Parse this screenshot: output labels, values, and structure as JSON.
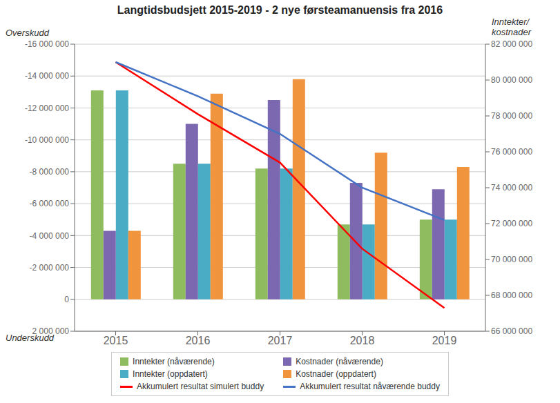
{
  "chart_data": {
    "type": "bar",
    "title": "Langtidsbudsjett 2015-2019 - 2 nye førsteamanuensis fra 2016",
    "annotations": [
      "Overskudd",
      "Underskudd",
      "Inntekter/\nkostnader"
    ],
    "categories": [
      "2015",
      "2016",
      "2017",
      "2018",
      "2019"
    ],
    "series": [
      {
        "name": "Inntekter (nåværende)",
        "color": "#8fbc5f",
        "values": [
          -13100000,
          -8500000,
          -8200000,
          -4700000,
          -5000000
        ]
      },
      {
        "name": "Kostnader (nåværende)",
        "color": "#7b68b0",
        "values": [
          -4300000,
          -11000000,
          -12500000,
          -7300000,
          -6900000
        ]
      },
      {
        "name": "Inntekter (oppdatert)",
        "color": "#4bacc6",
        "values": [
          -13100000,
          -8500000,
          -8200000,
          -4700000,
          -5000000
        ]
      },
      {
        "name": "Kostnader (oppdatert)",
        "color": "#f0943d",
        "values": [
          -4300000,
          -12900000,
          -13800000,
          -9200000,
          -8300000
        ]
      },
      {
        "name": "Akkumulert resultat simulert buddy",
        "type": "line",
        "axis": "y2",
        "color": "#ff0000",
        "values": [
          81000000,
          78100000,
          75400000,
          70600000,
          67300000
        ]
      },
      {
        "name": "Akkumulert resultat nåværende buddy",
        "type": "line",
        "axis": "y2",
        "color": "#4472c4",
        "values": [
          81000000,
          79100000,
          77000000,
          74000000,
          72200000
        ]
      }
    ],
    "ylim": [
      2000000,
      -16000000
    ],
    "yticks": [
      {
        "value": -16000000,
        "label": "-16 000 000"
      },
      {
        "value": -14000000,
        "label": "-14 000 000"
      },
      {
        "value": -12000000,
        "label": "-12 000 000"
      },
      {
        "value": -10000000,
        "label": "-10 000 000"
      },
      {
        "value": -8000000,
        "label": "-8 000 000"
      },
      {
        "value": -6000000,
        "label": "-6 000 000"
      },
      {
        "value": -4000000,
        "label": "-4 000 000"
      },
      {
        "value": -2000000,
        "label": "-2 000 000"
      },
      0,
      {
        "value": 2000000,
        "label": "2 000 000"
      }
    ],
    "y2lim": [
      66000000,
      82000000
    ],
    "y2ticks": [
      {
        "value": 66000000,
        "label": "66 000 000"
      },
      {
        "value": 68000000,
        "label": "68 000 000"
      },
      {
        "value": 70000000,
        "label": "70 000 000"
      },
      {
        "value": 72000000,
        "label": "72 000 000"
      },
      {
        "value": 74000000,
        "label": "74 000 000"
      },
      {
        "value": 76000000,
        "label": "76 000 000"
      },
      {
        "value": 78000000,
        "label": "78 000 000"
      },
      {
        "value": 80000000,
        "label": "80 000 000"
      },
      {
        "value": 82000000,
        "label": "82 000 000"
      }
    ],
    "grid": true,
    "legend": "bottom"
  }
}
